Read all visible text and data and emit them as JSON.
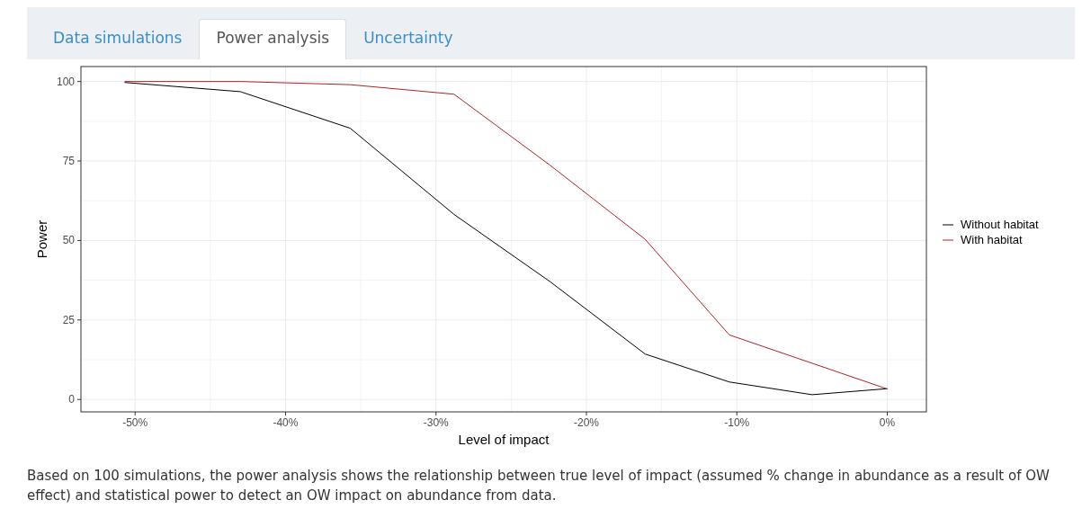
{
  "chart_data": {
    "type": "line",
    "xlabel": "Level of impact",
    "ylabel": "Power",
    "x": [
      -50.7,
      -43.0,
      -35.7,
      -28.8,
      -22.4,
      -16.1,
      -10.5,
      -5.0,
      0
    ],
    "series": [
      {
        "name": "Without habitat",
        "color": "#000000",
        "values": [
          99.7,
          96.8,
          85.3,
          58.2,
          37,
          14.3,
          5.5,
          1.5,
          3.4
        ]
      },
      {
        "name": "With habitat",
        "color": "#b22222",
        "values": [
          100,
          100,
          99,
          96,
          73.6,
          50.4,
          20.3,
          11.4,
          3.3
        ]
      }
    ],
    "xlim": [
      -53.6,
      2.6
    ],
    "ylim": [
      -3.9,
      104.7
    ],
    "xticks": [
      {
        "value": -50,
        "label": "-50%"
      },
      {
        "value": -40,
        "label": "-40%"
      },
      {
        "value": -30,
        "label": "-30%"
      },
      {
        "value": -20,
        "label": "-20%"
      },
      {
        "value": -10,
        "label": "-10%"
      },
      {
        "value": 0,
        "label": "0%"
      }
    ],
    "yticks": [
      0,
      25,
      50,
      75,
      100
    ],
    "grid": true,
    "legend": "right",
    "annotations": [
      "Data simulations",
      "Power analysis",
      "Uncertainty",
      "Based on 100 simulations, the power analysis shows the relationship between true level of impact (assumed % change in abundance as a result of OW effect) and statistical power to detect an OW impact on abundance from data."
    ]
  }
}
